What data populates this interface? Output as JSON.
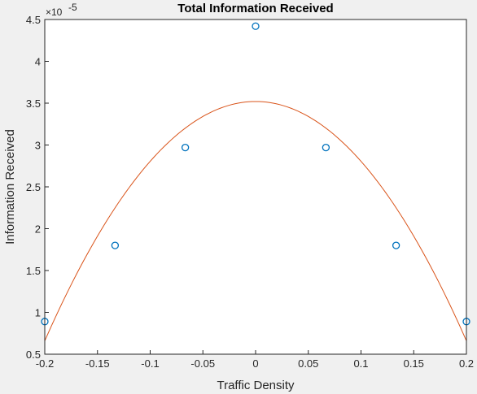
{
  "chart_data": {
    "type": "scatter",
    "title": "Total Information Received",
    "xlabel": "Traffic Density",
    "ylabel": "Information Received",
    "y_exponent_base": "×10",
    "y_exponent_power": "-5",
    "xlim": [
      -0.2,
      0.2
    ],
    "ylim": [
      0.5,
      4.5
    ],
    "grid": false,
    "x_ticks": [
      -0.2,
      -0.15,
      -0.1,
      -0.05,
      0,
      0.05,
      0.1,
      0.15,
      0.2
    ],
    "x_tick_labels": [
      "-0.2",
      "-0.15",
      "-0.1",
      "-0.05",
      "0",
      "0.05",
      "0.1",
      "0.15",
      "0.2"
    ],
    "y_ticks": [
      0.5,
      1,
      1.5,
      2,
      2.5,
      3,
      3.5,
      4,
      4.5
    ],
    "y_tick_labels": [
      "0.5",
      "1",
      "1.5",
      "2",
      "2.5",
      "3",
      "3.5",
      "4",
      "4.5"
    ],
    "series": [
      {
        "kind": "scatter",
        "marker": "circle",
        "color": "#0072BD",
        "x": [
          -0.2,
          -0.1333,
          -0.0667,
          0,
          0.0667,
          0.1333,
          0.2
        ],
        "y": [
          0.89,
          1.8,
          2.97,
          4.42,
          2.97,
          1.8,
          0.89
        ]
      },
      {
        "kind": "line",
        "color": "#D95319",
        "fit": "quadratic",
        "peak_x": 0,
        "peak_y": 3.52,
        "curvature": -71.5,
        "x_range": [
          -0.2,
          0.2
        ]
      }
    ]
  }
}
